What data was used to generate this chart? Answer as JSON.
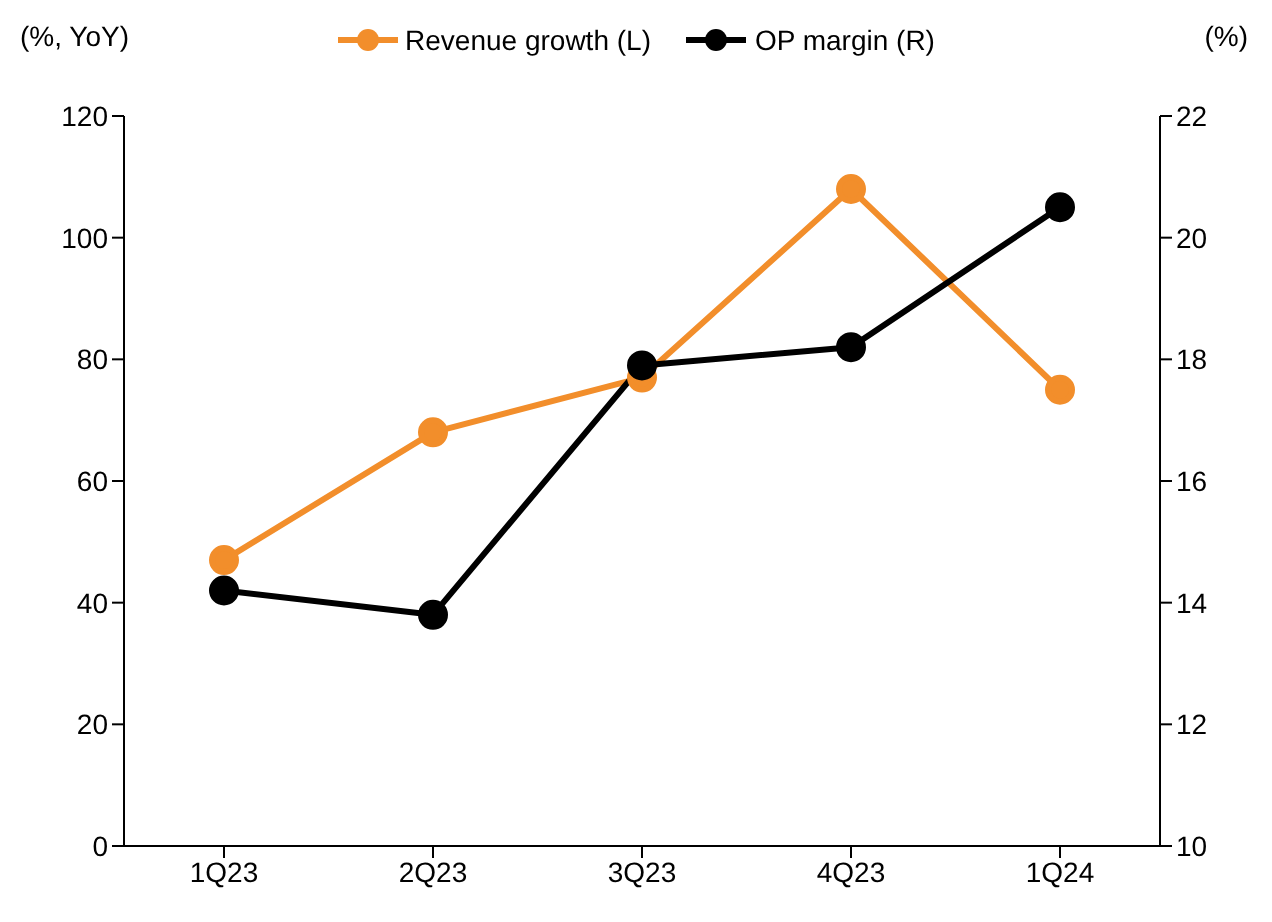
{
  "chart_data": {
    "type": "line",
    "ylabel": "(%, YoY)",
    "y2label": "(%)",
    "categories": [
      "1Q23",
      "2Q23",
      "3Q23",
      "4Q23",
      "1Q24"
    ],
    "series": [
      {
        "name": "Revenue growth (L)",
        "color": "#f28e2b",
        "values": [
          47,
          68,
          77,
          108,
          75
        ]
      },
      {
        "name": "OP margin (R)",
        "color": "#000000",
        "values": [
          14.2,
          13.8,
          17.9,
          18.2,
          20.5
        ],
        "axis": "y2"
      }
    ],
    "ylim": [
      0,
      120
    ],
    "yticks": [
      0,
      20,
      40,
      60,
      80,
      100,
      120
    ],
    "y2lim": [
      10,
      22
    ],
    "y2ticks": [
      10,
      12,
      14,
      16,
      18,
      20,
      22
    ],
    "grid": false,
    "legend": "top",
    "marker": "circle",
    "line_style": "solid"
  }
}
